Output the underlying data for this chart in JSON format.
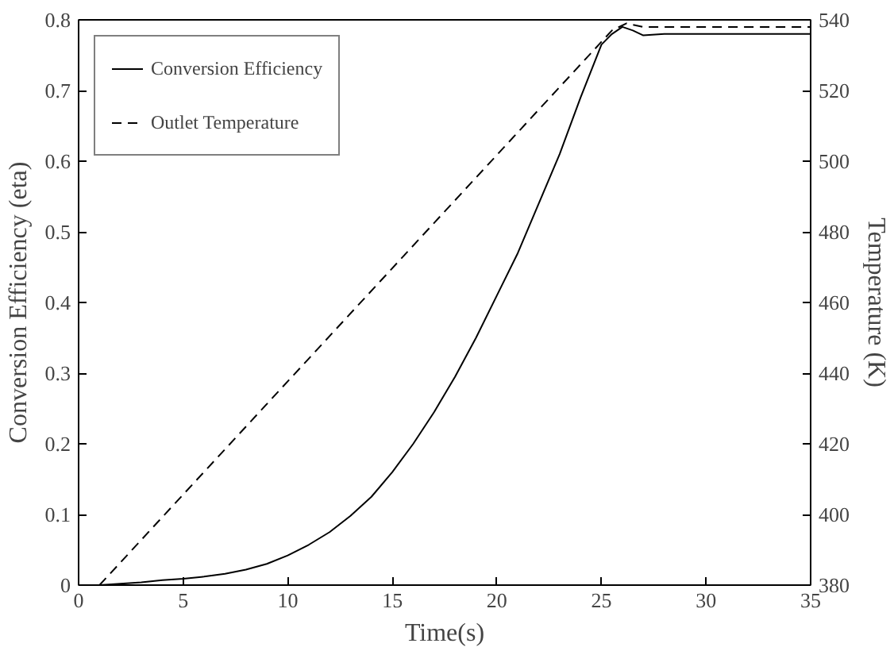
{
  "chart_data": {
    "type": "line",
    "xlabel": "Time(s)",
    "ylabel": "Conversion Efficiency (eta)",
    "y2label": "Temperature (K)",
    "xlim": [
      0,
      35
    ],
    "xticks": [
      0,
      5,
      10,
      15,
      20,
      25,
      30,
      35
    ],
    "ylim": [
      0,
      0.8
    ],
    "yticks": [
      0,
      0.1,
      0.2,
      0.3,
      0.4,
      0.5,
      0.6,
      0.7,
      0.8
    ],
    "y2lim": [
      380,
      540
    ],
    "y2ticks": [
      380,
      400,
      420,
      440,
      460,
      480,
      500,
      520,
      540
    ],
    "grid": false,
    "legend": "top left",
    "series": [
      {
        "name": "Conversion Efficiency",
        "color": "#000000",
        "line_style": "solid",
        "x": [
          1,
          2,
          3,
          4,
          5,
          6,
          7,
          8,
          9,
          10,
          11,
          12,
          13,
          14,
          15,
          16,
          17,
          18,
          19,
          20,
          21,
          22,
          23,
          24,
          25,
          25.5,
          26,
          26.5,
          27,
          28,
          30,
          32,
          35
        ],
        "values": [
          0,
          0.002,
          0.004,
          0.007,
          0.009,
          0.012,
          0.016,
          0.022,
          0.03,
          0.042,
          0.057,
          0.075,
          0.098,
          0.125,
          0.16,
          0.2,
          0.245,
          0.295,
          0.35,
          0.41,
          0.47,
          0.54,
          0.61,
          0.69,
          0.765,
          0.78,
          0.79,
          0.785,
          0.778,
          0.78,
          0.78,
          0.78,
          0.78
        ]
      },
      {
        "name": "Outlet Temperature",
        "color": "#000000",
        "line_style": "dashed",
        "axis": "y2",
        "x": [
          1,
          25.5,
          26.2,
          27,
          35
        ],
        "values": [
          380,
          537,
          539,
          538,
          538
        ]
      }
    ]
  }
}
